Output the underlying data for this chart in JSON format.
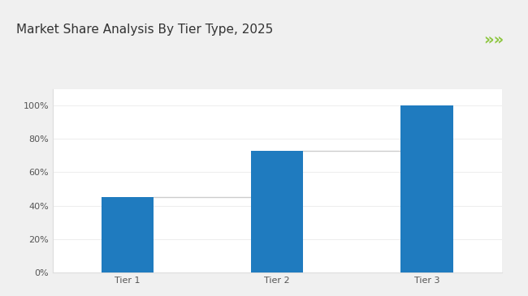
{
  "title": "Market Share Analysis By Tier Type, 2025",
  "categories": [
    "Tier 1",
    "Tier 2",
    "Tier 3"
  ],
  "values": [
    45,
    73,
    100
  ],
  "bar_color": "#1f7bbf",
  "bar_width": 0.35,
  "connector_color": "#cccccc",
  "ylim": [
    0,
    110
  ],
  "yticks": [
    0,
    20,
    40,
    60,
    80,
    100
  ],
  "ytick_labels": [
    "0%",
    "20%",
    "40%",
    "60%",
    "80%",
    "100%"
  ],
  "title_fontsize": 11,
  "tick_fontsize": 8,
  "background_color": "#f0f0f0",
  "plot_bg_color": "#ffffff",
  "green_line_color": "#8dc63f",
  "green_arrow_color": "#8dc63f",
  "title_color": "#333333"
}
